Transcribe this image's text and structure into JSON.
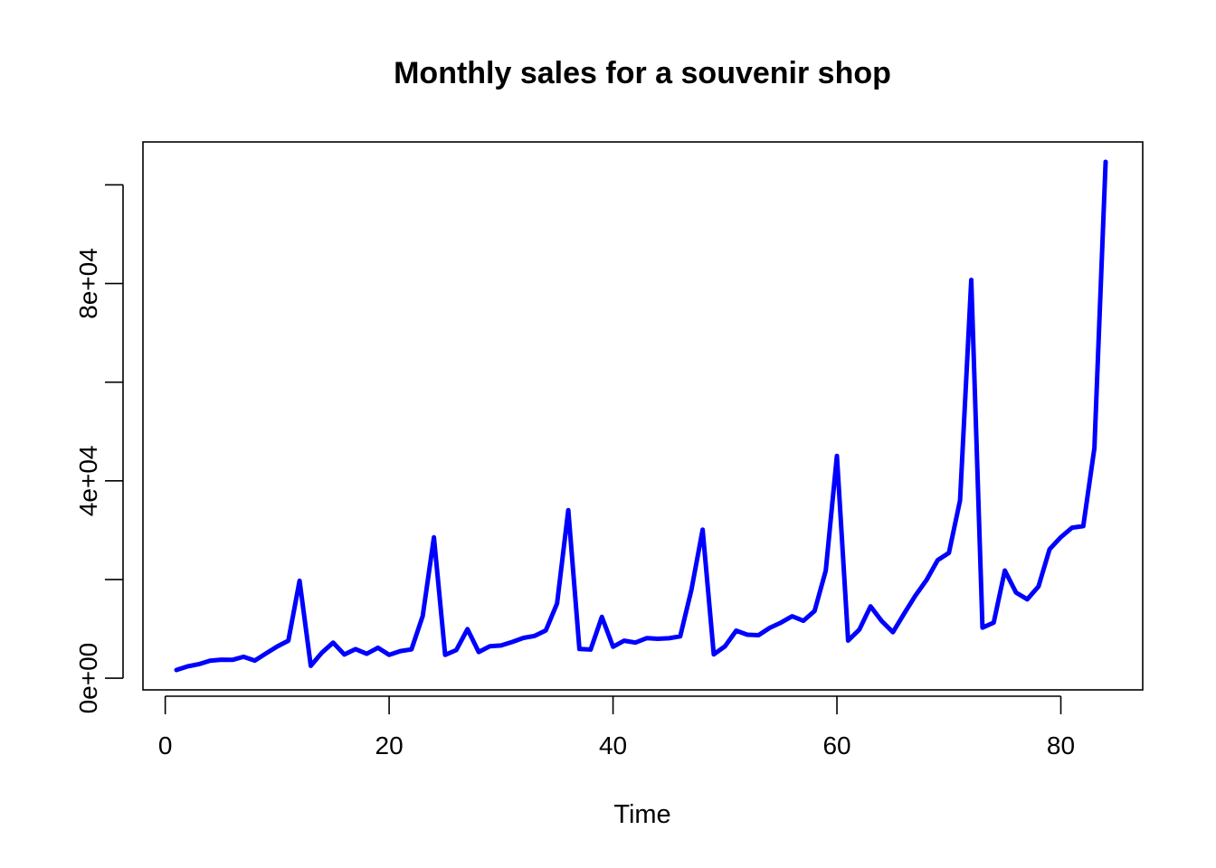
{
  "chart_data": {
    "type": "line",
    "title": "Monthly sales for a souvenir shop",
    "xlabel": "Time",
    "ylabel": "",
    "xlim": [
      1,
      84
    ],
    "ylim": [
      1664.81,
      104660.67
    ],
    "x_ticks": [
      0,
      20,
      40,
      60,
      80
    ],
    "x_tick_labels": [
      "0",
      "20",
      "40",
      "60",
      "80"
    ],
    "y_ticks": [
      0,
      20000,
      40000,
      60000,
      80000,
      100000
    ],
    "y_tick_labels": [
      "0e+00",
      "",
      "4e+04",
      "",
      "8e+04",
      ""
    ],
    "grid": false,
    "legend": "none",
    "series": [
      {
        "color": "#0000ff",
        "x": [
          1,
          2,
          3,
          4,
          5,
          6,
          7,
          8,
          9,
          10,
          11,
          12,
          13,
          14,
          15,
          16,
          17,
          18,
          19,
          20,
          21,
          22,
          23,
          24,
          25,
          26,
          27,
          28,
          29,
          30,
          31,
          32,
          33,
          34,
          35,
          36,
          37,
          38,
          39,
          40,
          41,
          42,
          43,
          44,
          45,
          46,
          47,
          48,
          49,
          50,
          51,
          52,
          53,
          54,
          55,
          56,
          57,
          58,
          59,
          60,
          61,
          62,
          63,
          64,
          65,
          66,
          67,
          68,
          69,
          70,
          71,
          72,
          73,
          74,
          75,
          76,
          77,
          78,
          79,
          80,
          81,
          82,
          83,
          84
        ],
        "values": [
          1664.81,
          2397.53,
          2840.71,
          3547.29,
          3752.96,
          3714.74,
          4349.61,
          3566.34,
          5021.82,
          6423.48,
          7600.6,
          19756.21,
          2499.81,
          5198.24,
          7225.14,
          4806.03,
          5900.88,
          4951.34,
          6179.12,
          4752.15,
          5496.43,
          5835.1,
          12600.08,
          28541.72,
          4717.02,
          5702.63,
          9957.58,
          5304.78,
          6492.43,
          6630.8,
          7349.62,
          8176.62,
          8573.17,
          9690.5,
          15151.84,
          34061.01,
          5921.1,
          5814.58,
          12421.25,
          6369.77,
          7609.12,
          7224.75,
          8121.22,
          7979.25,
          8093.06,
          8476.7,
          17914.66,
          30114.41,
          4826.64,
          6470.23,
          9638.77,
          8821.17,
          8722.37,
          10209.48,
          11276.55,
          12552.22,
          11637.39,
          13606.89,
          21822.11,
          45060.69,
          7615.03,
          9849.69,
          14558.4,
          11587.33,
          9332.56,
          13082.09,
          16732.78,
          19888.61,
          23933.38,
          25391.35,
          36024.8,
          80721.71,
          10243.24,
          11266.88,
          21826.84,
          17357.33,
          15997.79,
          18601.53,
          26155.15,
          28586.52,
          30505.41,
          30821.33,
          46634.38,
          104660.67
        ]
      }
    ]
  }
}
